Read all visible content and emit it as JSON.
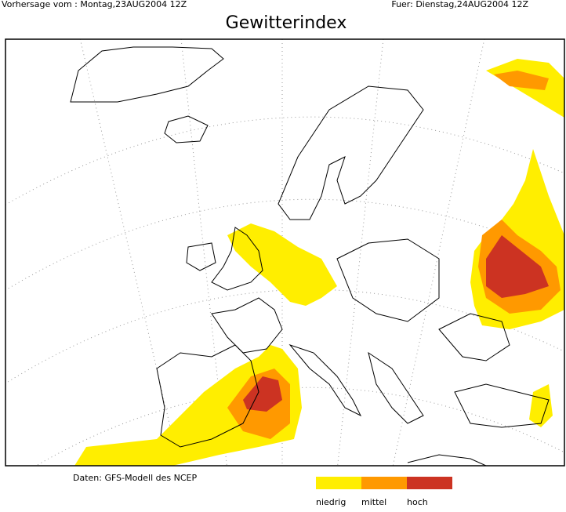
{
  "header": {
    "left": "Vorhersage vom : Montag,23AUG2004 12Z",
    "right": "Fuer: Dienstag,24AUG2004 12Z"
  },
  "title": "Gewitterindex",
  "footer": {
    "source": "Daten: GFS-Modell des NCEP"
  },
  "legend": [
    {
      "label": "niedrig",
      "color": "#ffee00"
    },
    {
      "label": "mittel",
      "color": "#ff9900"
    },
    {
      "label": "hoch",
      "color": "#cc3322"
    }
  ]
}
